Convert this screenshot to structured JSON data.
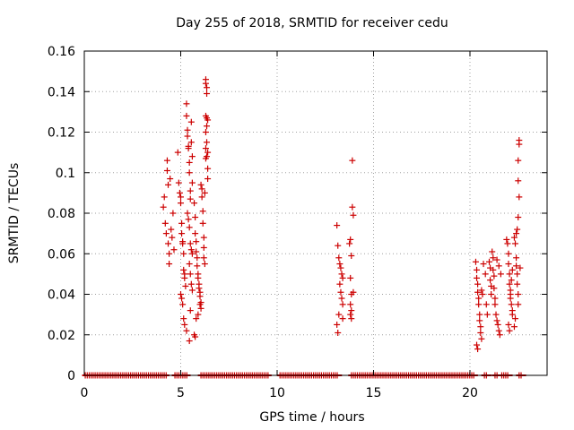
{
  "chart_data": {
    "type": "scatter",
    "title": "Day 255 of 2018, SRMTID for receiver cedu",
    "xlabel": "GPS time / hours",
    "ylabel": "SRMTID / TECUs",
    "xlim": [
      0,
      24
    ],
    "ylim": [
      0,
      0.16
    ],
    "xticks": [
      0,
      5,
      10,
      15,
      20
    ],
    "xtick_labels": [
      "0",
      "5",
      "10",
      "15",
      "20"
    ],
    "yticks": [
      0,
      0.02,
      0.04,
      0.06,
      0.08,
      0.1,
      0.12,
      0.14,
      0.16
    ],
    "ytick_labels": [
      "0",
      "0.02",
      "0.04",
      "0.06",
      "0.08",
      "0.1",
      "0.12",
      "0.14",
      "0.16"
    ],
    "grid": true,
    "marker": "+",
    "series": [
      {
        "name": "SRMTID",
        "color": "#cc0000",
        "points": [
          [
            4.1,
            0.083
          ],
          [
            4.15,
            0.088
          ],
          [
            4.2,
            0.075
          ],
          [
            4.25,
            0.07
          ],
          [
            4.3,
            0.106
          ],
          [
            4.3,
            0.101
          ],
          [
            4.35,
            0.094
          ],
          [
            4.35,
            0.065
          ],
          [
            4.4,
            0.06
          ],
          [
            4.4,
            0.055
          ],
          [
            4.45,
            0.097
          ],
          [
            4.5,
            0.072
          ],
          [
            4.55,
            0.068
          ],
          [
            4.6,
            0.08
          ],
          [
            4.65,
            0.062
          ],
          [
            4.85,
            0.11
          ],
          [
            4.9,
            0.095
          ],
          [
            4.95,
            0.09
          ],
          [
            5.0,
            0.088
          ],
          [
            5.0,
            0.085
          ],
          [
            5.05,
            0.075
          ],
          [
            5.05,
            0.07
          ],
          [
            5.1,
            0.066
          ],
          [
            5.1,
            0.065
          ],
          [
            5.15,
            0.06
          ],
          [
            5.15,
            0.052
          ],
          [
            5.2,
            0.05
          ],
          [
            5.2,
            0.048
          ],
          [
            5.25,
            0.044
          ],
          [
            5.0,
            0.04
          ],
          [
            5.05,
            0.038
          ],
          [
            5.1,
            0.035
          ],
          [
            5.15,
            0.028
          ],
          [
            5.2,
            0.025
          ],
          [
            5.3,
            0.134
          ],
          [
            5.3,
            0.128
          ],
          [
            5.35,
            0.121
          ],
          [
            5.35,
            0.118
          ],
          [
            5.4,
            0.113
          ],
          [
            5.4,
            0.112
          ],
          [
            5.45,
            0.105
          ],
          [
            5.45,
            0.1
          ],
          [
            5.5,
            0.091
          ],
          [
            5.5,
            0.087
          ],
          [
            5.55,
            0.125
          ],
          [
            5.55,
            0.115
          ],
          [
            5.6,
            0.108
          ],
          [
            5.6,
            0.095
          ],
          [
            5.35,
            0.08
          ],
          [
            5.4,
            0.077
          ],
          [
            5.45,
            0.073
          ],
          [
            5.5,
            0.065
          ],
          [
            5.55,
            0.062
          ],
          [
            5.6,
            0.06
          ],
          [
            5.45,
            0.055
          ],
          [
            5.5,
            0.05
          ],
          [
            5.55,
            0.045
          ],
          [
            5.6,
            0.042
          ],
          [
            5.3,
            0.022
          ],
          [
            5.45,
            0.017
          ],
          [
            5.5,
            0.032
          ],
          [
            5.7,
            0.085
          ],
          [
            5.75,
            0.078
          ],
          [
            5.75,
            0.07
          ],
          [
            5.8,
            0.066
          ],
          [
            5.8,
            0.061
          ],
          [
            5.85,
            0.058
          ],
          [
            5.85,
            0.054
          ],
          [
            5.9,
            0.05
          ],
          [
            5.9,
            0.048
          ],
          [
            5.95,
            0.045
          ],
          [
            5.95,
            0.043
          ],
          [
            6.0,
            0.041
          ],
          [
            6.0,
            0.039
          ],
          [
            6.05,
            0.036
          ],
          [
            5.7,
            0.02
          ],
          [
            5.75,
            0.019
          ],
          [
            5.8,
            0.028
          ],
          [
            5.9,
            0.03
          ],
          [
            6.0,
            0.035
          ],
          [
            6.05,
            0.033
          ],
          [
            6.05,
            0.094
          ],
          [
            6.1,
            0.092
          ],
          [
            6.1,
            0.088
          ],
          [
            6.15,
            0.081
          ],
          [
            6.15,
            0.075
          ],
          [
            6.2,
            0.068
          ],
          [
            6.2,
            0.063
          ],
          [
            6.2,
            0.058
          ],
          [
            6.25,
            0.055
          ],
          [
            6.25,
            0.09
          ],
          [
            6.3,
            0.146
          ],
          [
            6.3,
            0.144
          ],
          [
            6.35,
            0.142
          ],
          [
            6.35,
            0.139
          ],
          [
            6.3,
            0.128
          ],
          [
            6.35,
            0.127
          ],
          [
            6.4,
            0.126
          ],
          [
            6.35,
            0.123
          ],
          [
            6.3,
            0.12
          ],
          [
            6.35,
            0.115
          ],
          [
            6.3,
            0.112
          ],
          [
            6.4,
            0.11
          ],
          [
            6.35,
            0.108
          ],
          [
            6.3,
            0.107
          ],
          [
            6.4,
            0.102
          ],
          [
            6.4,
            0.097
          ],
          [
            13.1,
            0.074
          ],
          [
            13.15,
            0.064
          ],
          [
            13.2,
            0.058
          ],
          [
            13.25,
            0.055
          ],
          [
            13.3,
            0.053
          ],
          [
            13.35,
            0.05
          ],
          [
            13.4,
            0.048
          ],
          [
            13.25,
            0.045
          ],
          [
            13.3,
            0.041
          ],
          [
            13.35,
            0.038
          ],
          [
            13.4,
            0.035
          ],
          [
            13.2,
            0.03
          ],
          [
            13.1,
            0.025
          ],
          [
            13.15,
            0.021
          ],
          [
            13.4,
            0.028
          ],
          [
            13.75,
            0.065
          ],
          [
            13.8,
            0.067
          ],
          [
            13.85,
            0.059
          ],
          [
            13.8,
            0.048
          ],
          [
            13.85,
            0.04
          ],
          [
            13.8,
            0.035
          ],
          [
            13.85,
            0.032
          ],
          [
            13.8,
            0.03
          ],
          [
            13.85,
            0.028
          ],
          [
            13.9,
            0.083
          ],
          [
            13.95,
            0.079
          ],
          [
            13.9,
            0.106
          ],
          [
            13.95,
            0.041
          ],
          [
            20.3,
            0.056
          ],
          [
            20.35,
            0.052
          ],
          [
            20.35,
            0.048
          ],
          [
            20.4,
            0.045
          ],
          [
            20.4,
            0.041
          ],
          [
            20.45,
            0.038
          ],
          [
            20.45,
            0.035
          ],
          [
            20.5,
            0.03
          ],
          [
            20.5,
            0.027
          ],
          [
            20.55,
            0.024
          ],
          [
            20.55,
            0.021
          ],
          [
            20.6,
            0.018
          ],
          [
            20.35,
            0.015
          ],
          [
            20.4,
            0.013
          ],
          [
            20.6,
            0.042
          ],
          [
            20.65,
            0.04
          ],
          [
            20.7,
            0.055
          ],
          [
            20.8,
            0.05
          ],
          [
            20.85,
            0.035
          ],
          [
            20.9,
            0.03
          ],
          [
            21.0,
            0.056
          ],
          [
            21.05,
            0.053
          ],
          [
            21.05,
            0.047
          ],
          [
            21.1,
            0.044
          ],
          [
            21.1,
            0.04
          ],
          [
            21.15,
            0.061
          ],
          [
            21.2,
            0.058
          ],
          [
            21.2,
            0.052
          ],
          [
            21.25,
            0.049
          ],
          [
            21.25,
            0.043
          ],
          [
            21.3,
            0.038
          ],
          [
            21.3,
            0.035
          ],
          [
            21.35,
            0.03
          ],
          [
            21.4,
            0.027
          ],
          [
            21.45,
            0.025
          ],
          [
            21.5,
            0.022
          ],
          [
            21.55,
            0.02
          ],
          [
            21.4,
            0.057
          ],
          [
            21.5,
            0.054
          ],
          [
            21.6,
            0.05
          ],
          [
            21.9,
            0.067
          ],
          [
            21.95,
            0.065
          ],
          [
            22.0,
            0.06
          ],
          [
            22.0,
            0.055
          ],
          [
            22.05,
            0.05
          ],
          [
            22.05,
            0.045
          ],
          [
            22.1,
            0.04
          ],
          [
            22.1,
            0.038
          ],
          [
            22.15,
            0.035
          ],
          [
            22.2,
            0.032
          ],
          [
            22.2,
            0.03
          ],
          [
            22.0,
            0.025
          ],
          [
            22.05,
            0.022
          ],
          [
            22.1,
            0.042
          ],
          [
            22.15,
            0.047
          ],
          [
            22.2,
            0.052
          ],
          [
            22.3,
            0.068
          ],
          [
            22.35,
            0.065
          ],
          [
            22.4,
            0.058
          ],
          [
            22.4,
            0.054
          ],
          [
            22.45,
            0.05
          ],
          [
            22.45,
            0.045
          ],
          [
            22.5,
            0.04
          ],
          [
            22.5,
            0.035
          ],
          [
            22.35,
            0.028
          ],
          [
            22.3,
            0.024
          ],
          [
            22.4,
            0.07
          ],
          [
            22.45,
            0.072
          ],
          [
            22.5,
            0.078
          ],
          [
            22.55,
            0.088
          ],
          [
            22.5,
            0.096
          ],
          [
            22.5,
            0.106
          ],
          [
            22.55,
            0.114
          ],
          [
            22.55,
            0.116
          ],
          [
            22.6,
            0.053
          ]
        ],
        "zero_runs": [
          [
            0.05,
            4.25
          ],
          [
            4.7,
            5.35
          ],
          [
            6.05,
            9.55
          ],
          [
            10.15,
            13.2
          ],
          [
            13.85,
            20.25
          ],
          [
            20.75,
            20.95
          ],
          [
            21.3,
            21.45
          ],
          [
            21.65,
            22.05
          ],
          [
            22.55,
            22.75
          ]
        ]
      }
    ]
  }
}
